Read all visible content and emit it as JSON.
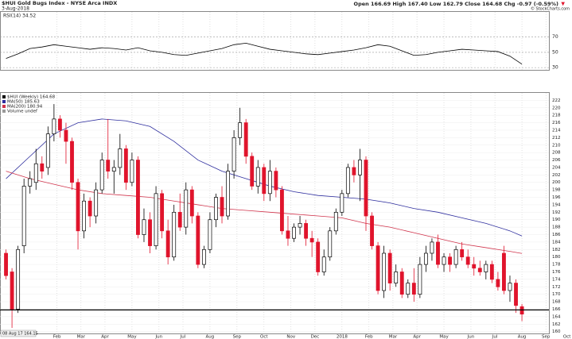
{
  "header": {
    "symbol_title": "$HUI Gold Bugs Index - NYSE Arca INDX",
    "date": "3-Aug-2018",
    "quote": "Open 166.69 High 167.40 Low 162.79 Close 164.68 Chg -0.97 (-0.59%)",
    "quote_arrow": "▼",
    "copyright": "© StockCharts.com"
  },
  "chart_data": [
    {
      "type": "line",
      "label": "RSI(14) 34.52",
      "color": "#000000",
      "x": [
        0,
        2,
        4,
        6,
        8,
        10,
        12,
        14,
        16,
        18,
        20,
        22,
        24,
        26,
        28,
        30,
        32,
        34,
        36,
        38,
        40,
        42,
        44,
        46,
        48,
        50,
        52,
        54,
        56,
        58,
        60,
        62,
        64,
        66,
        68,
        70,
        72,
        74,
        76,
        78,
        80,
        82,
        84,
        86
      ],
      "values": [
        42,
        48,
        55,
        57,
        60,
        58,
        56,
        54,
        56,
        55,
        53,
        56,
        52,
        50,
        47,
        46,
        49,
        52,
        55,
        60,
        62,
        58,
        54,
        52,
        50,
        48,
        47,
        49,
        51,
        53,
        56,
        60,
        58,
        52,
        46,
        47,
        50,
        52,
        54,
        53,
        52,
        51,
        45,
        34.52
      ],
      "xlim": [
        -1,
        90.5
      ],
      "ylim": [
        27,
        103
      ],
      "yticks": [
        30,
        50,
        70
      ],
      "grid": true
    },
    {
      "type": "candlestick",
      "title": "$HUI (Weekly) 164.68",
      "legend_extra": "Volume undef",
      "up_color": "#000000",
      "down_color": "#e0142c",
      "open": [
        181,
        176,
        166,
        183,
        199,
        200,
        205,
        204,
        213,
        217,
        214,
        211,
        200,
        187,
        195,
        191,
        198,
        206,
        203,
        204,
        209,
        200,
        206,
        186,
        190,
        183,
        197,
        187,
        180,
        192,
        188,
        198,
        191,
        178,
        182,
        190,
        196,
        191,
        203,
        212,
        216,
        207,
        199,
        204,
        197,
        203,
        198,
        187,
        185,
        188,
        189,
        185,
        184,
        176,
        180,
        187,
        192,
        197,
        204,
        202,
        206,
        191,
        183,
        171,
        181,
        173,
        176,
        170,
        173,
        170,
        178,
        181,
        184,
        178,
        180,
        178,
        182,
        180,
        178,
        177,
        176,
        178,
        174,
        181,
        171,
        173,
        166.69
      ],
      "high": [
        182,
        177,
        183,
        201,
        203,
        209,
        207,
        215,
        221,
        218,
        216,
        212,
        201,
        197,
        196,
        200,
        208,
        217,
        206,
        213,
        210,
        208,
        207,
        193,
        192,
        199,
        198,
        190,
        194,
        197,
        200,
        199,
        192,
        183,
        192,
        197,
        199,
        205,
        214,
        220,
        217,
        208,
        206,
        205,
        206,
        204,
        199,
        191,
        189,
        191,
        190,
        187,
        185,
        182,
        188,
        193,
        198,
        205,
        206,
        209,
        207,
        192,
        184,
        183,
        182,
        178,
        177,
        174,
        177,
        180,
        183,
        185,
        186,
        181,
        181,
        183,
        184,
        182,
        180,
        179,
        179,
        179,
        176,
        183,
        175,
        174,
        167.4
      ],
      "low": [
        174,
        161,
        165,
        181,
        197,
        198,
        201,
        202,
        211,
        212,
        205,
        198,
        182,
        185,
        188,
        189,
        197,
        201,
        197,
        202,
        198,
        199,
        185,
        184,
        181,
        182,
        185,
        178,
        179,
        187,
        186,
        189,
        177,
        177,
        181,
        188,
        189,
        190,
        201,
        210,
        205,
        198,
        197,
        195,
        195,
        196,
        186,
        183,
        184,
        186,
        183,
        180,
        175,
        175,
        179,
        186,
        191,
        196,
        200,
        195,
        187,
        182,
        170,
        169,
        171,
        172,
        169,
        169,
        168,
        169,
        176,
        179,
        177,
        176,
        176,
        177,
        179,
        177,
        175,
        175,
        174,
        173,
        171,
        170,
        168,
        165,
        162.79
      ],
      "close": [
        175,
        166,
        182,
        199,
        201,
        205,
        203,
        213,
        217,
        214,
        211,
        200,
        187,
        195,
        191,
        198,
        206,
        203,
        204,
        209,
        200,
        206,
        186,
        190,
        183,
        197,
        187,
        180,
        192,
        188,
        198,
        191,
        178,
        182,
        190,
        196,
        191,
        203,
        212,
        216,
        207,
        199,
        204,
        197,
        203,
        198,
        187,
        185,
        188,
        189,
        185,
        184,
        176,
        180,
        187,
        192,
        197,
        204,
        202,
        206,
        191,
        183,
        171,
        181,
        173,
        176,
        170,
        173,
        170,
        178,
        181,
        184,
        178,
        180,
        178,
        182,
        180,
        178,
        177,
        176,
        178,
        174,
        172,
        171,
        173,
        167,
        164.68
      ],
      "series": [
        {
          "name": "MA(50) 185.63",
          "color": "#2e2e9e",
          "x": [
            0,
            4,
            8,
            12,
            16,
            20,
            24,
            28,
            32,
            36,
            40,
            44,
            48,
            52,
            56,
            60,
            64,
            68,
            72,
            76,
            80,
            84,
            86
          ],
          "values": [
            201,
            207,
            213,
            216,
            217,
            216.5,
            215,
            211,
            206,
            203,
            201,
            199,
            197.5,
            196.5,
            196,
            195.5,
            194.5,
            193,
            192,
            190.5,
            189,
            187,
            185.63
          ]
        },
        {
          "name": "MA(200) 180.94",
          "color": "#d0344c",
          "x": [
            0,
            4,
            8,
            12,
            16,
            20,
            24,
            28,
            32,
            36,
            40,
            44,
            48,
            52,
            56,
            60,
            64,
            68,
            72,
            76,
            80,
            84,
            86
          ],
          "values": [
            203,
            201,
            199.5,
            198,
            197,
            196.5,
            196,
            195,
            194,
            193,
            192.5,
            192,
            191.5,
            191,
            190.5,
            189,
            188,
            186.5,
            185,
            183.5,
            182.5,
            181.5,
            180.94
          ]
        }
      ],
      "hline": 165.8,
      "hline_note": "08 Aug 17 164.15",
      "xlim": [
        -1,
        90.5
      ],
      "ylim": [
        159.5,
        224
      ],
      "yticks": [
        160,
        162,
        164,
        166,
        168,
        170,
        172,
        174,
        176,
        178,
        180,
        182,
        184,
        186,
        188,
        190,
        192,
        194,
        196,
        198,
        200,
        202,
        204,
        206,
        208,
        210,
        212,
        214,
        216,
        218,
        220,
        222
      ],
      "xticks": [
        {
          "value": 8.5,
          "label": "Feb"
        },
        {
          "value": 12.5,
          "label": "Mar"
        },
        {
          "value": 16.5,
          "label": "Apr"
        },
        {
          "value": 21,
          "label": "May"
        },
        {
          "value": 25.5,
          "label": "Jun"
        },
        {
          "value": 29.5,
          "label": "Jul"
        },
        {
          "value": 34,
          "label": "Aug"
        },
        {
          "value": 38.5,
          "label": "Sep"
        },
        {
          "value": 43,
          "label": "Oct"
        },
        {
          "value": 47.5,
          "label": "Nov"
        },
        {
          "value": 51.5,
          "label": "Dec"
        },
        {
          "value": 56,
          "label": "2018"
        },
        {
          "value": 60.5,
          "label": "Feb"
        },
        {
          "value": 64.5,
          "label": "Mar"
        },
        {
          "value": 68.5,
          "label": "Apr"
        },
        {
          "value": 73,
          "label": "May"
        },
        {
          "value": 77.5,
          "label": "Jun"
        },
        {
          "value": 81.5,
          "label": "Jul"
        },
        {
          "value": 86,
          "label": "Aug"
        },
        {
          "value": 90,
          "label": "Sep"
        },
        {
          "value": 93.5,
          "label": "Oct"
        }
      ],
      "grid": true
    }
  ]
}
